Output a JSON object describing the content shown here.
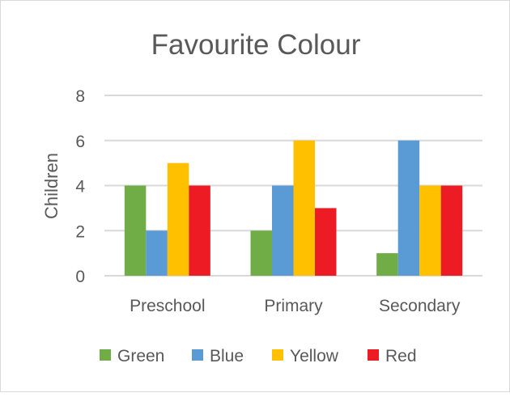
{
  "chart_data": {
    "type": "bar",
    "title": "Favourite Colour",
    "xlabel": "",
    "ylabel": "Children",
    "ylim": [
      0,
      8
    ],
    "yticks": [
      "0",
      "2",
      "4",
      "6",
      "8"
    ],
    "grid": true,
    "legend": "bottom",
    "categories": [
      "Preschool",
      "Primary",
      "Secondary"
    ],
    "series": [
      {
        "name": "Green",
        "color": "#70AD47",
        "values": [
          4,
          2,
          1
        ]
      },
      {
        "name": "Blue",
        "color": "#5B9BD5",
        "values": [
          2,
          4,
          6
        ]
      },
      {
        "name": "Yellow",
        "color": "#FFC000",
        "values": [
          5,
          6,
          4
        ]
      },
      {
        "name": "Red",
        "color": "#ED1C24",
        "values": [
          4,
          3,
          4
        ]
      }
    ]
  }
}
